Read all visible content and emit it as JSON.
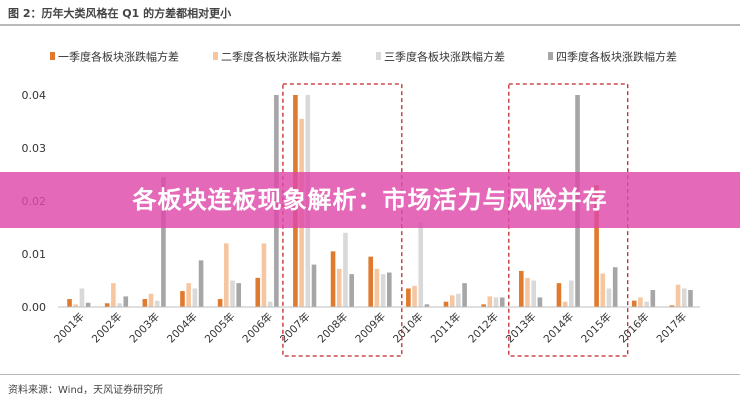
{
  "figure_title": "图 2：历年大类风格在 Q1 的方差都相对更小",
  "source_text": "资料来源：Wind，天风证券研究所",
  "banner_text": "各板块连板现象解析：市场活力与风险并存",
  "colors": {
    "banner": "#de48aa",
    "highlight_box": "#c0282d"
  },
  "highlight_boxes": [
    {
      "from": "2007年",
      "to": "2009年"
    },
    {
      "from": "2013年",
      "to": "2015年"
    }
  ],
  "chart_data": {
    "type": "bar",
    "categories": [
      "2001年",
      "2002年",
      "2003年",
      "2004年",
      "2005年",
      "2006年",
      "2007年",
      "2008年",
      "2009年",
      "2010年",
      "2011年",
      "2012年",
      "2013年",
      "2014年",
      "2015年",
      "2016年",
      "2017年"
    ],
    "series": [
      {
        "name": "一季度各板块涨跌幅方差",
        "color": "#e07a2e",
        "values": [
          0.0015,
          0.0007,
          0.0015,
          0.003,
          0.0015,
          0.0055,
          0.04,
          0.0105,
          0.0095,
          0.0035,
          0.001,
          0.0005,
          0.0068,
          0.0045,
          0.023,
          0.0012,
          0.0003
        ]
      },
      {
        "name": "二季度各板块涨跌幅方差",
        "color": "#f6c6a0",
        "values": [
          0.0005,
          0.0045,
          0.0025,
          0.0045,
          0.012,
          0.012,
          0.0355,
          0.0072,
          0.0072,
          0.004,
          0.0022,
          0.002,
          0.0055,
          0.001,
          0.0063,
          0.0018,
          0.0042
        ]
      },
      {
        "name": "三季度各板块涨跌幅方差",
        "color": "#d9d9d9",
        "values": [
          0.0035,
          0.0007,
          0.0012,
          0.0035,
          0.005,
          0.001,
          0.04,
          0.014,
          0.0062,
          0.016,
          0.0025,
          0.0018,
          0.005,
          0.005,
          0.0035,
          0.001,
          0.0035
        ]
      },
      {
        "name": "四季度各板块涨跌幅方差",
        "color": "#a6a6a6",
        "values": [
          0.0008,
          0.002,
          0.0245,
          0.0088,
          0.0045,
          0.04,
          0.008,
          0.0062,
          0.0065,
          0.0005,
          0.0045,
          0.0018,
          0.0018,
          0.04,
          0.0075,
          0.0032,
          0.0032
        ]
      }
    ],
    "ylim": [
      0,
      0.04
    ],
    "yticks": [
      "0.00",
      "0.01",
      "0.02",
      "0.03",
      "0.04"
    ],
    "legend_position": "top",
    "grid": false
  }
}
